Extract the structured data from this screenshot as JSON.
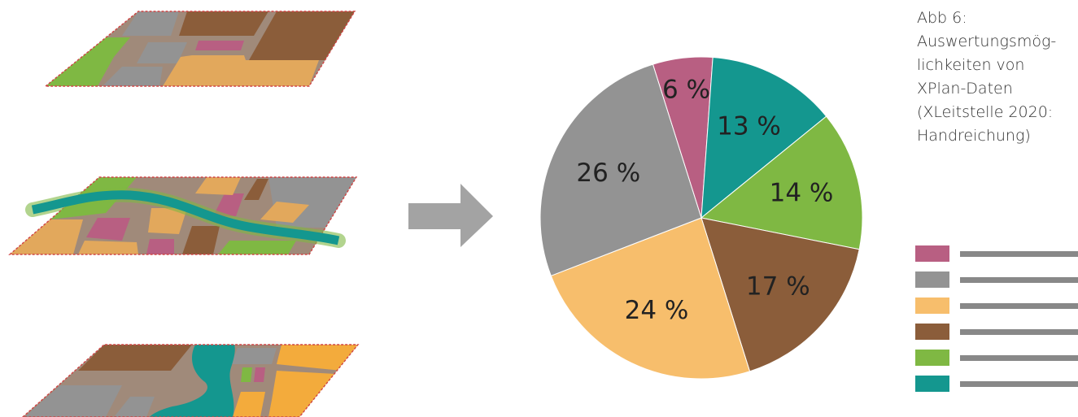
{
  "caption_lines": [
    "Abb 6:",
    "Auswertungsmög-",
    "lichkeiten von",
    "XPlan-Daten",
    "(XLeitstelle 2020:",
    "Handreichung)"
  ],
  "colors": {
    "pink": "#b85f82",
    "gray": "#939393",
    "light_orange": "#f7be6c",
    "brown": "#8b5d3a",
    "green": "#7fb843",
    "teal": "#14978f",
    "arrow": "#a3a3a3",
    "legend_line": "#888888",
    "map_border": "#d04545"
  },
  "icons": {
    "arrow": "right-arrow-icon",
    "maps": [
      "land-use-map-icon",
      "river-map-icon",
      "river-map-icon"
    ]
  },
  "chart_data": {
    "type": "pie",
    "title": "",
    "slices": [
      {
        "value": 6,
        "label": "6 %",
        "color": "#b85f82"
      },
      {
        "value": 13,
        "label": "13 %",
        "color": "#14978f"
      },
      {
        "value": 14,
        "label": "14 %",
        "color": "#7fb843"
      },
      {
        "value": 17,
        "label": "17 %",
        "color": "#8b5d3a"
      },
      {
        "value": 24,
        "label": "24 %",
        "color": "#f7be6c"
      },
      {
        "value": 26,
        "label": "26 %",
        "color": "#939393"
      }
    ],
    "legend": {
      "placement": "bottom-right",
      "entries": [
        {
          "color": "#b85f82",
          "label": ""
        },
        {
          "color": "#939393",
          "label": ""
        },
        {
          "color": "#f7be6c",
          "label": ""
        },
        {
          "color": "#8b5d3a",
          "label": ""
        },
        {
          "color": "#7fb843",
          "label": ""
        },
        {
          "color": "#14978f",
          "label": ""
        }
      ]
    }
  }
}
